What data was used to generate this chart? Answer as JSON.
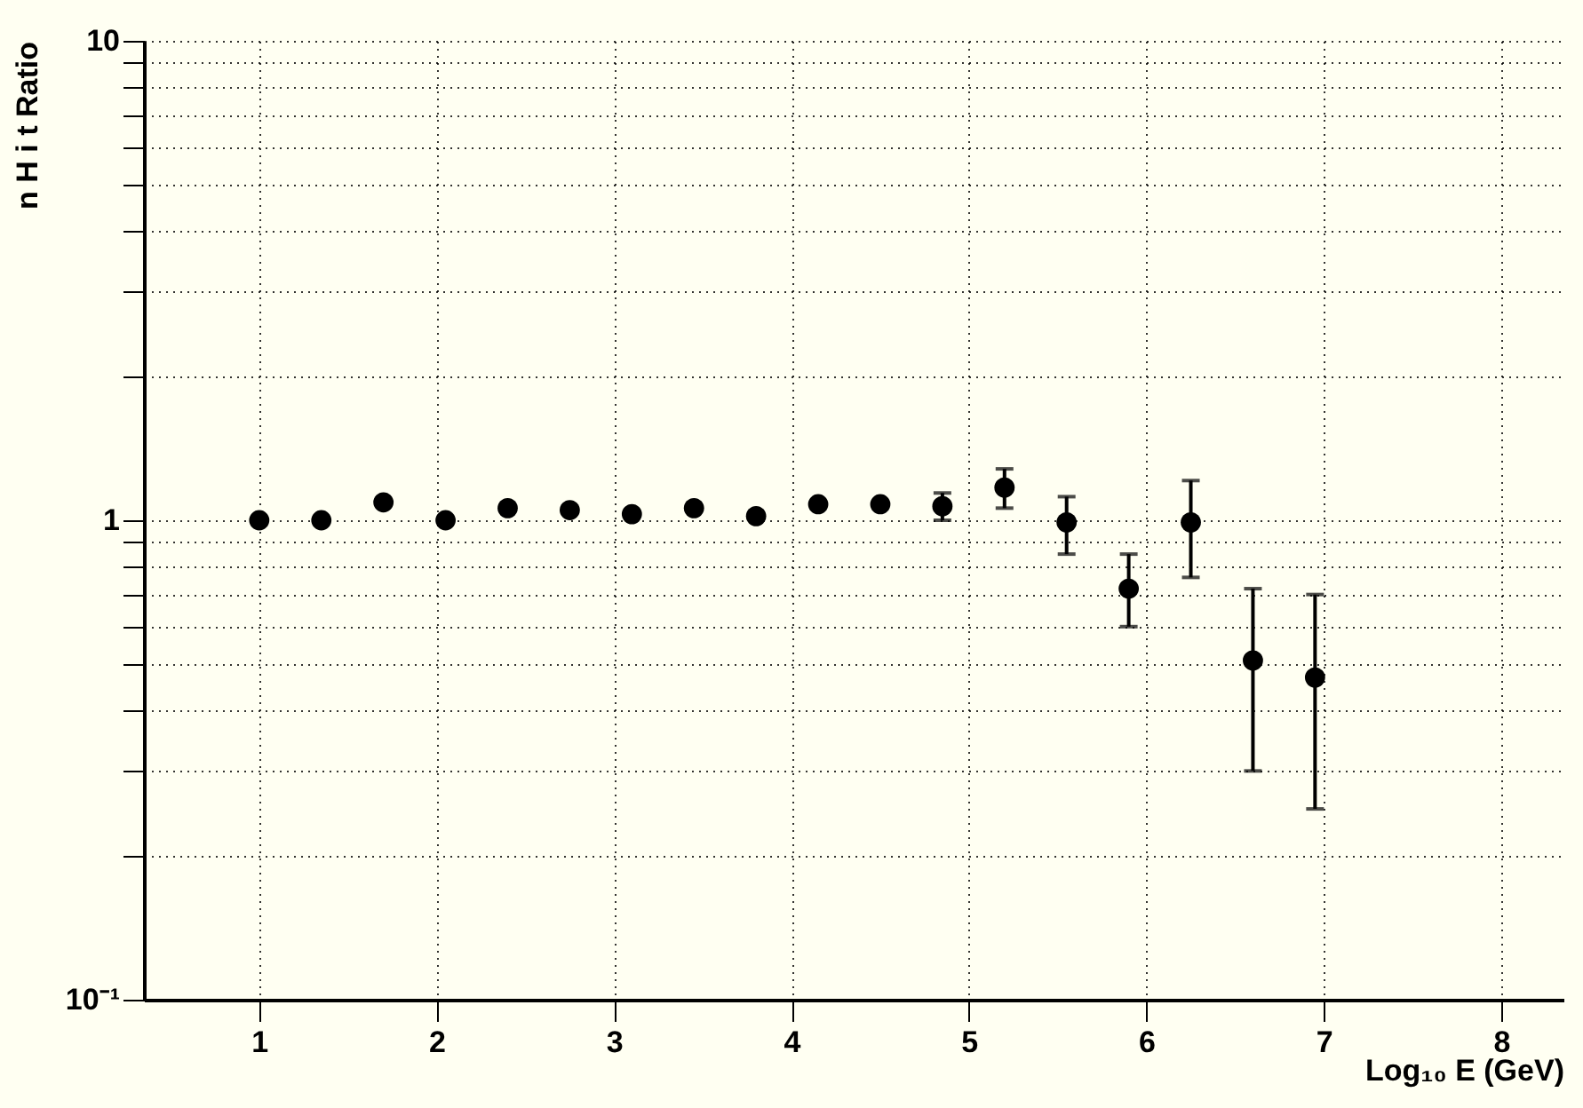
{
  "chart_data": {
    "type": "scatter",
    "xlabel": "Log₁₀ E (GeV)",
    "ylabel": "n H i t Ratio",
    "x": [
      1,
      1.35,
      1.7,
      2.05,
      2.4,
      2.75,
      3.1,
      3.45,
      3.8,
      4.15,
      4.5,
      4.85,
      5.2,
      5.55,
      5.9,
      6.25,
      6.6,
      6.95
    ],
    "series": [
      {
        "color": "#000000",
        "values": [
          1.0,
          1.0,
          1.09,
          1.0,
          1.06,
          1.05,
          1.03,
          1.06,
          1.02,
          1.08,
          1.08,
          1.07,
          1.17,
          0.99,
          0.72,
          0.99,
          0.51,
          0.47
        ],
        "errors": [
          null,
          null,
          null,
          null,
          null,
          null,
          null,
          null,
          null,
          null,
          null,
          [
            1.0,
            1.14
          ],
          [
            1.06,
            1.28
          ],
          [
            0.85,
            1.12
          ],
          [
            0.6,
            0.85
          ],
          [
            0.76,
            1.21
          ],
          [
            0.3,
            0.72
          ],
          [
            0.25,
            0.7
          ]
        ]
      }
    ],
    "marker": "circle",
    "log": "y",
    "grid": true,
    "xlim": [
      0.35,
      8.35
    ],
    "xticks": [
      1,
      2,
      3,
      4,
      5,
      6,
      7,
      8
    ],
    "ylim": [
      0.1,
      10
    ],
    "yticks": [
      {
        "value": 0.1,
        "label": "10⁻¹"
      },
      {
        "value": 0.2,
        "label": null
      },
      {
        "value": 0.3,
        "label": null
      },
      {
        "value": 0.4,
        "label": null
      },
      {
        "value": 0.5,
        "label": null
      },
      {
        "value": 0.6,
        "label": null
      },
      {
        "value": 0.7,
        "label": null
      },
      {
        "value": 0.8,
        "label": null
      },
      {
        "value": 0.9,
        "label": null
      },
      1,
      {
        "value": 2,
        "label": null
      },
      {
        "value": 3,
        "label": null
      },
      {
        "value": 4,
        "label": null
      },
      {
        "value": 5,
        "label": null
      },
      {
        "value": 6,
        "label": null
      },
      {
        "value": 7,
        "label": null
      },
      {
        "value": 8,
        "label": null
      },
      {
        "value": 9,
        "label": null
      },
      10
    ]
  }
}
